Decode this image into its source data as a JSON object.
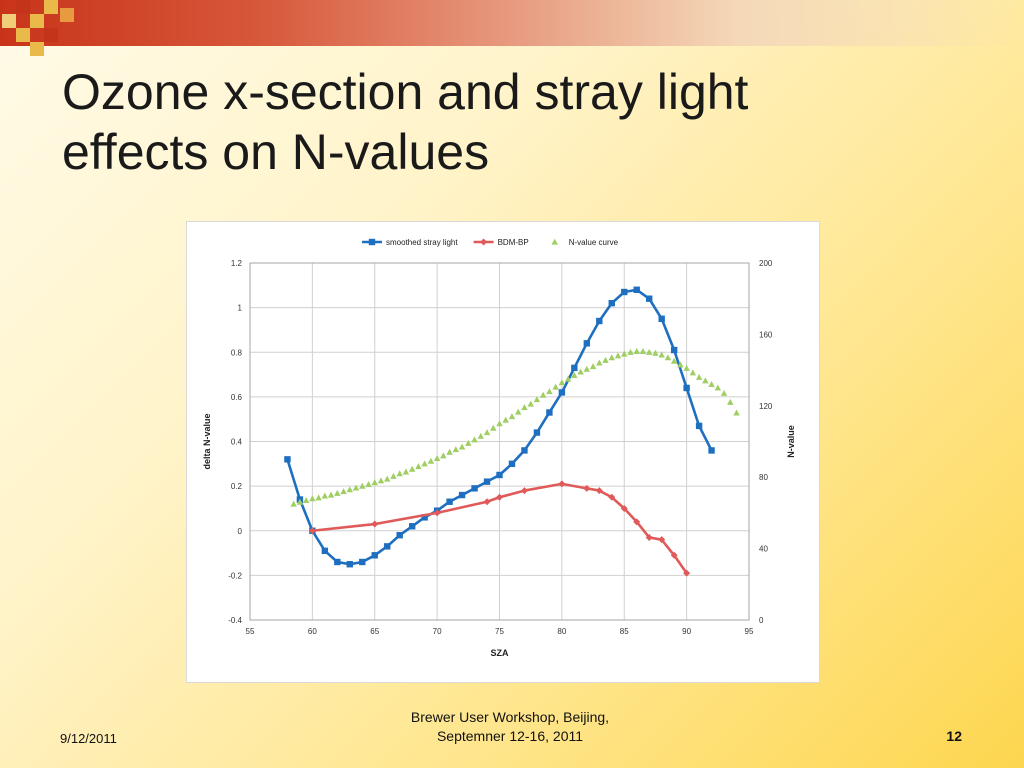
{
  "slide": {
    "title_line1": "Ozone x-section and stray light",
    "title_line2": "effects on N-values",
    "footer_date": "9/12/2011",
    "footer_center_line1": "Brewer User Workshop, Beijing,",
    "footer_center_line2": "Septemner 12-16, 2011",
    "page_number": "12"
  },
  "chart_data": {
    "type": "line",
    "xlabel": "SZA",
    "ylabel": "delta N-value",
    "y2label": "N-value",
    "xlim": [
      55,
      95
    ],
    "ylim": [
      -0.4,
      1.2
    ],
    "y2lim": [
      0,
      200
    ],
    "xticks": [
      "55",
      "60",
      "65",
      "70",
      "75",
      "80",
      "85",
      "90",
      "95"
    ],
    "yticks": [
      "-0.4",
      "-0.2",
      "0",
      "0.2",
      "0.4",
      "0.6",
      "0.8",
      "1",
      "1.2"
    ],
    "y2ticks": [
      "0",
      "40",
      "80",
      "120",
      "160",
      "200"
    ],
    "legend_position": "top",
    "grid": true,
    "series": [
      {
        "name": "smoothed stray light",
        "color": "#1f6fc1",
        "marker": "square",
        "axis": "left",
        "x": [
          58,
          59,
          60,
          61,
          62,
          63,
          64,
          65,
          66,
          67,
          68,
          69,
          70,
          71,
          72,
          73,
          74,
          75,
          76,
          77,
          78,
          79,
          80,
          81,
          82,
          83,
          84,
          85,
          86,
          87,
          88,
          89,
          90,
          91,
          92
        ],
        "y": [
          0.32,
          0.14,
          0.0,
          -0.09,
          -0.14,
          -0.15,
          -0.14,
          -0.11,
          -0.07,
          -0.02,
          0.02,
          0.06,
          0.09,
          0.13,
          0.16,
          0.19,
          0.22,
          0.25,
          0.3,
          0.36,
          0.44,
          0.53,
          0.62,
          0.73,
          0.84,
          0.94,
          1.02,
          1.07,
          1.08,
          1.04,
          0.95,
          0.81,
          0.64,
          0.47,
          0.36
        ]
      },
      {
        "name": "BDM-BP",
        "color": "#e05a5a",
        "marker": "diamond",
        "axis": "left",
        "x": [
          60,
          65,
          70,
          74,
          75,
          77,
          80,
          82,
          83,
          84,
          85,
          86,
          87,
          88,
          89,
          90
        ],
        "y": [
          0.0,
          0.03,
          0.08,
          0.13,
          0.15,
          0.18,
          0.21,
          0.19,
          0.18,
          0.15,
          0.1,
          0.04,
          -0.03,
          -0.04,
          -0.11,
          -0.19
        ]
      },
      {
        "name": "N-value curve",
        "color": "#9fce63",
        "marker": "triangle",
        "axis": "right",
        "x": [
          58.5,
          59,
          59.5,
          60,
          60.5,
          61,
          61.5,
          62,
          62.5,
          63,
          63.5,
          64,
          64.5,
          65,
          65.5,
          66,
          66.5,
          67,
          67.5,
          68,
          68.5,
          69,
          69.5,
          70,
          70.5,
          71,
          71.5,
          72,
          72.5,
          73,
          73.5,
          74,
          74.5,
          75,
          75.5,
          76,
          76.5,
          77,
          77.5,
          78,
          78.5,
          79,
          79.5,
          80,
          80.5,
          81,
          81.5,
          82,
          82.5,
          83,
          83.5,
          84,
          84.5,
          85,
          85.5,
          86,
          86.5,
          87,
          87.5,
          88,
          88.5,
          89,
          89.5,
          90,
          90.5,
          91,
          91.5,
          92,
          92.5,
          93,
          93.5,
          94
        ],
        "y": [
          65,
          66,
          67,
          68,
          68.5,
          69.5,
          70,
          71,
          72,
          73,
          74,
          75,
          76,
          77,
          78,
          79,
          80.5,
          82,
          83,
          84.5,
          86,
          87.5,
          89,
          90.5,
          92,
          94,
          95.5,
          97,
          99,
          101,
          103,
          105,
          107.5,
          110,
          112,
          114,
          116.5,
          119,
          121,
          123.5,
          126,
          128,
          130.5,
          133,
          135,
          137,
          139,
          140.5,
          142,
          144,
          145.5,
          147,
          148,
          149,
          150,
          150.5,
          150.5,
          150,
          149.5,
          148.5,
          147,
          145,
          143,
          141,
          138.5,
          136,
          134,
          132,
          130,
          127,
          122,
          116
        ]
      }
    ]
  }
}
